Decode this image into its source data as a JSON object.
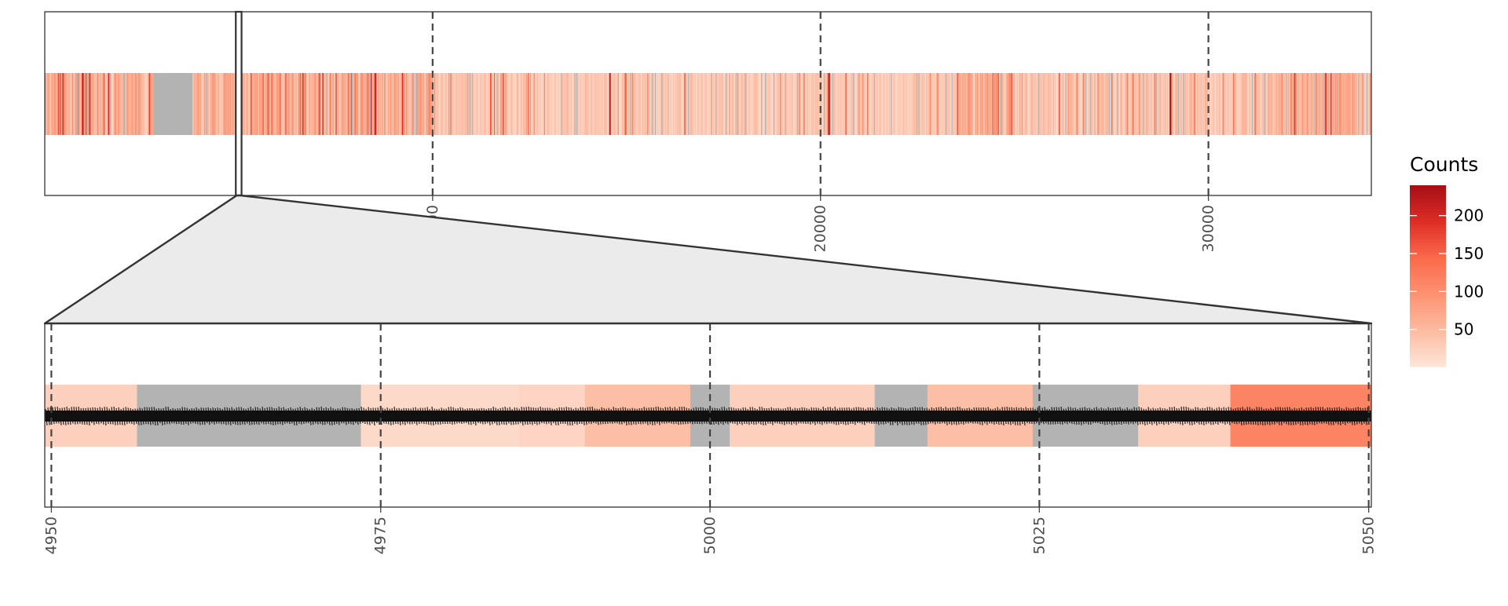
{
  "chart_data": [
    {
      "type": "heatmap",
      "panel": "overview",
      "title": "",
      "xlabel": "",
      "ylabel": "",
      "xlim": [
        1,
        34200
      ],
      "x_ticks": [
        10000,
        20000,
        30000
      ],
      "x_tick_labels": [
        "10000",
        "20000",
        "30000"
      ],
      "highlight_region": [
        4950,
        5050
      ],
      "missing_color": "#b3b3b3",
      "notable_values": [
        {
          "x": 450,
          "value": 180
        },
        {
          "x": 3300,
          "value": null
        },
        {
          "x": 3700,
          "value": null
        },
        {
          "x": 5300,
          "value": 150
        },
        {
          "x": 14550,
          "value": 210
        },
        {
          "x": 20200,
          "value": 220
        },
        {
          "x": 29000,
          "value": 230
        },
        {
          "x": 32200,
          "value": 170
        },
        {
          "x": 33000,
          "value": 180
        }
      ]
    },
    {
      "type": "heatmap",
      "panel": "zoom",
      "title": "",
      "xlabel": "",
      "ylabel": "",
      "xlim": [
        4949.5,
        5050.2
      ],
      "x_ticks": [
        4950,
        4975,
        5000,
        5025,
        5050
      ],
      "x_tick_labels": [
        "4950",
        "4975",
        "5000",
        "5025",
        "5050"
      ],
      "segments": [
        {
          "start": 4949.5,
          "end": 4956.5,
          "value": 25
        },
        {
          "start": 4956.5,
          "end": 4973.5,
          "value": null
        },
        {
          "start": 4973.5,
          "end": 4985.5,
          "value": 15
        },
        {
          "start": 4985.5,
          "end": 4990.5,
          "value": 20
        },
        {
          "start": 4990.5,
          "end": 4998.5,
          "value": 45
        },
        {
          "start": 4998.5,
          "end": 5001.5,
          "value": null
        },
        {
          "start": 5001.5,
          "end": 5012.5,
          "value": 25
        },
        {
          "start": 5012.5,
          "end": 5016.5,
          "value": null
        },
        {
          "start": 5016.5,
          "end": 5024.5,
          "value": 45
        },
        {
          "start": 5024.5,
          "end": 5032.5,
          "value": null
        },
        {
          "start": 5032.5,
          "end": 5039.5,
          "value": 25
        },
        {
          "start": 5039.5,
          "end": 5050.2,
          "value": 115
        }
      ],
      "sequence_text_row": true
    }
  ],
  "legend": {
    "title": "Counts",
    "min": 1,
    "max": 240,
    "ticks": [
      50,
      100,
      150,
      200
    ],
    "tick_labels": [
      "50",
      "100",
      "150",
      "200"
    ],
    "palette": [
      "#fee5d9",
      "#fcbba1",
      "#fc9272",
      "#fb6a4a",
      "#de2d26",
      "#a50f15"
    ]
  }
}
